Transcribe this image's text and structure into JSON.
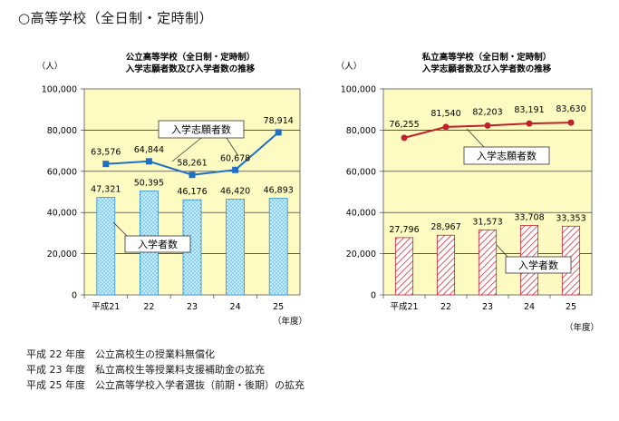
{
  "page_title": "○高等学校（全日制・定時制）",
  "notes": [
    {
      "year": "平成 22 年度",
      "text": "公立高校生の授業料無償化"
    },
    {
      "year": "平成 23 年度",
      "text": "私立高校生等授業料支援補助金の拡充"
    },
    {
      "year": "平成 25 年度",
      "text": "公立高等学校入学者選抜（前期・後期）の拡充"
    }
  ],
  "chart_data": [
    {
      "type": "bar",
      "title": "公立高等学校（全日制・定時制）\n入学志願者数及び入学者数の推移",
      "ylabel": "（人）",
      "xlabel": "（年度）",
      "categories": [
        "平成21",
        "22",
        "23",
        "24",
        "25"
      ],
      "ylim": [
        0,
        100000
      ],
      "yticks": [
        "0",
        "20,000",
        "40,000",
        "60,000",
        "80,000",
        "100,000"
      ],
      "background": "#fdfbc2",
      "grid": true,
      "series": [
        {
          "name": "入学志願者数",
          "kind": "line",
          "color": "#1f6fc6",
          "values": [
            63576,
            64844,
            58261,
            60678,
            78914
          ],
          "labels": [
            "63,576",
            "64,844",
            "58,261",
            "60,678",
            "78,914"
          ]
        },
        {
          "name": "入学者数",
          "kind": "bar",
          "color": "#2c8fd0",
          "fill": "#b6e6fa",
          "values": [
            47321,
            50395,
            46176,
            46420,
            46893
          ],
          "labels": [
            "47,321",
            "50,395",
            "46,176",
            "46,420",
            "46,893"
          ]
        }
      ]
    },
    {
      "type": "bar",
      "title": "私立高等学校（全日制・定時制）\n入学志願者数及び入学者数の推移",
      "ylabel": "（人）",
      "xlabel": "（年度）",
      "categories": [
        "平成21",
        "22",
        "23",
        "24",
        "25"
      ],
      "ylim": [
        0,
        100000
      ],
      "yticks": [
        "0",
        "20,000",
        "40,000",
        "60,000",
        "80,000",
        "100,000"
      ],
      "background": "#fdfbc2",
      "grid": true,
      "series": [
        {
          "name": "入学志願者数",
          "kind": "line",
          "color": "#c0222b",
          "values": [
            76255,
            81540,
            82203,
            83191,
            83630
          ],
          "labels": [
            "76,255",
            "81,540",
            "82,203",
            "83,191",
            "83,630"
          ]
        },
        {
          "name": "入学者数",
          "kind": "bar",
          "color": "#c8202e",
          "fill": "#f7d2d2",
          "values": [
            27796,
            28967,
            31573,
            33708,
            33353
          ],
          "labels": [
            "27,796",
            "28,967",
            "31,573",
            "33,708",
            "33,353"
          ]
        }
      ]
    }
  ]
}
